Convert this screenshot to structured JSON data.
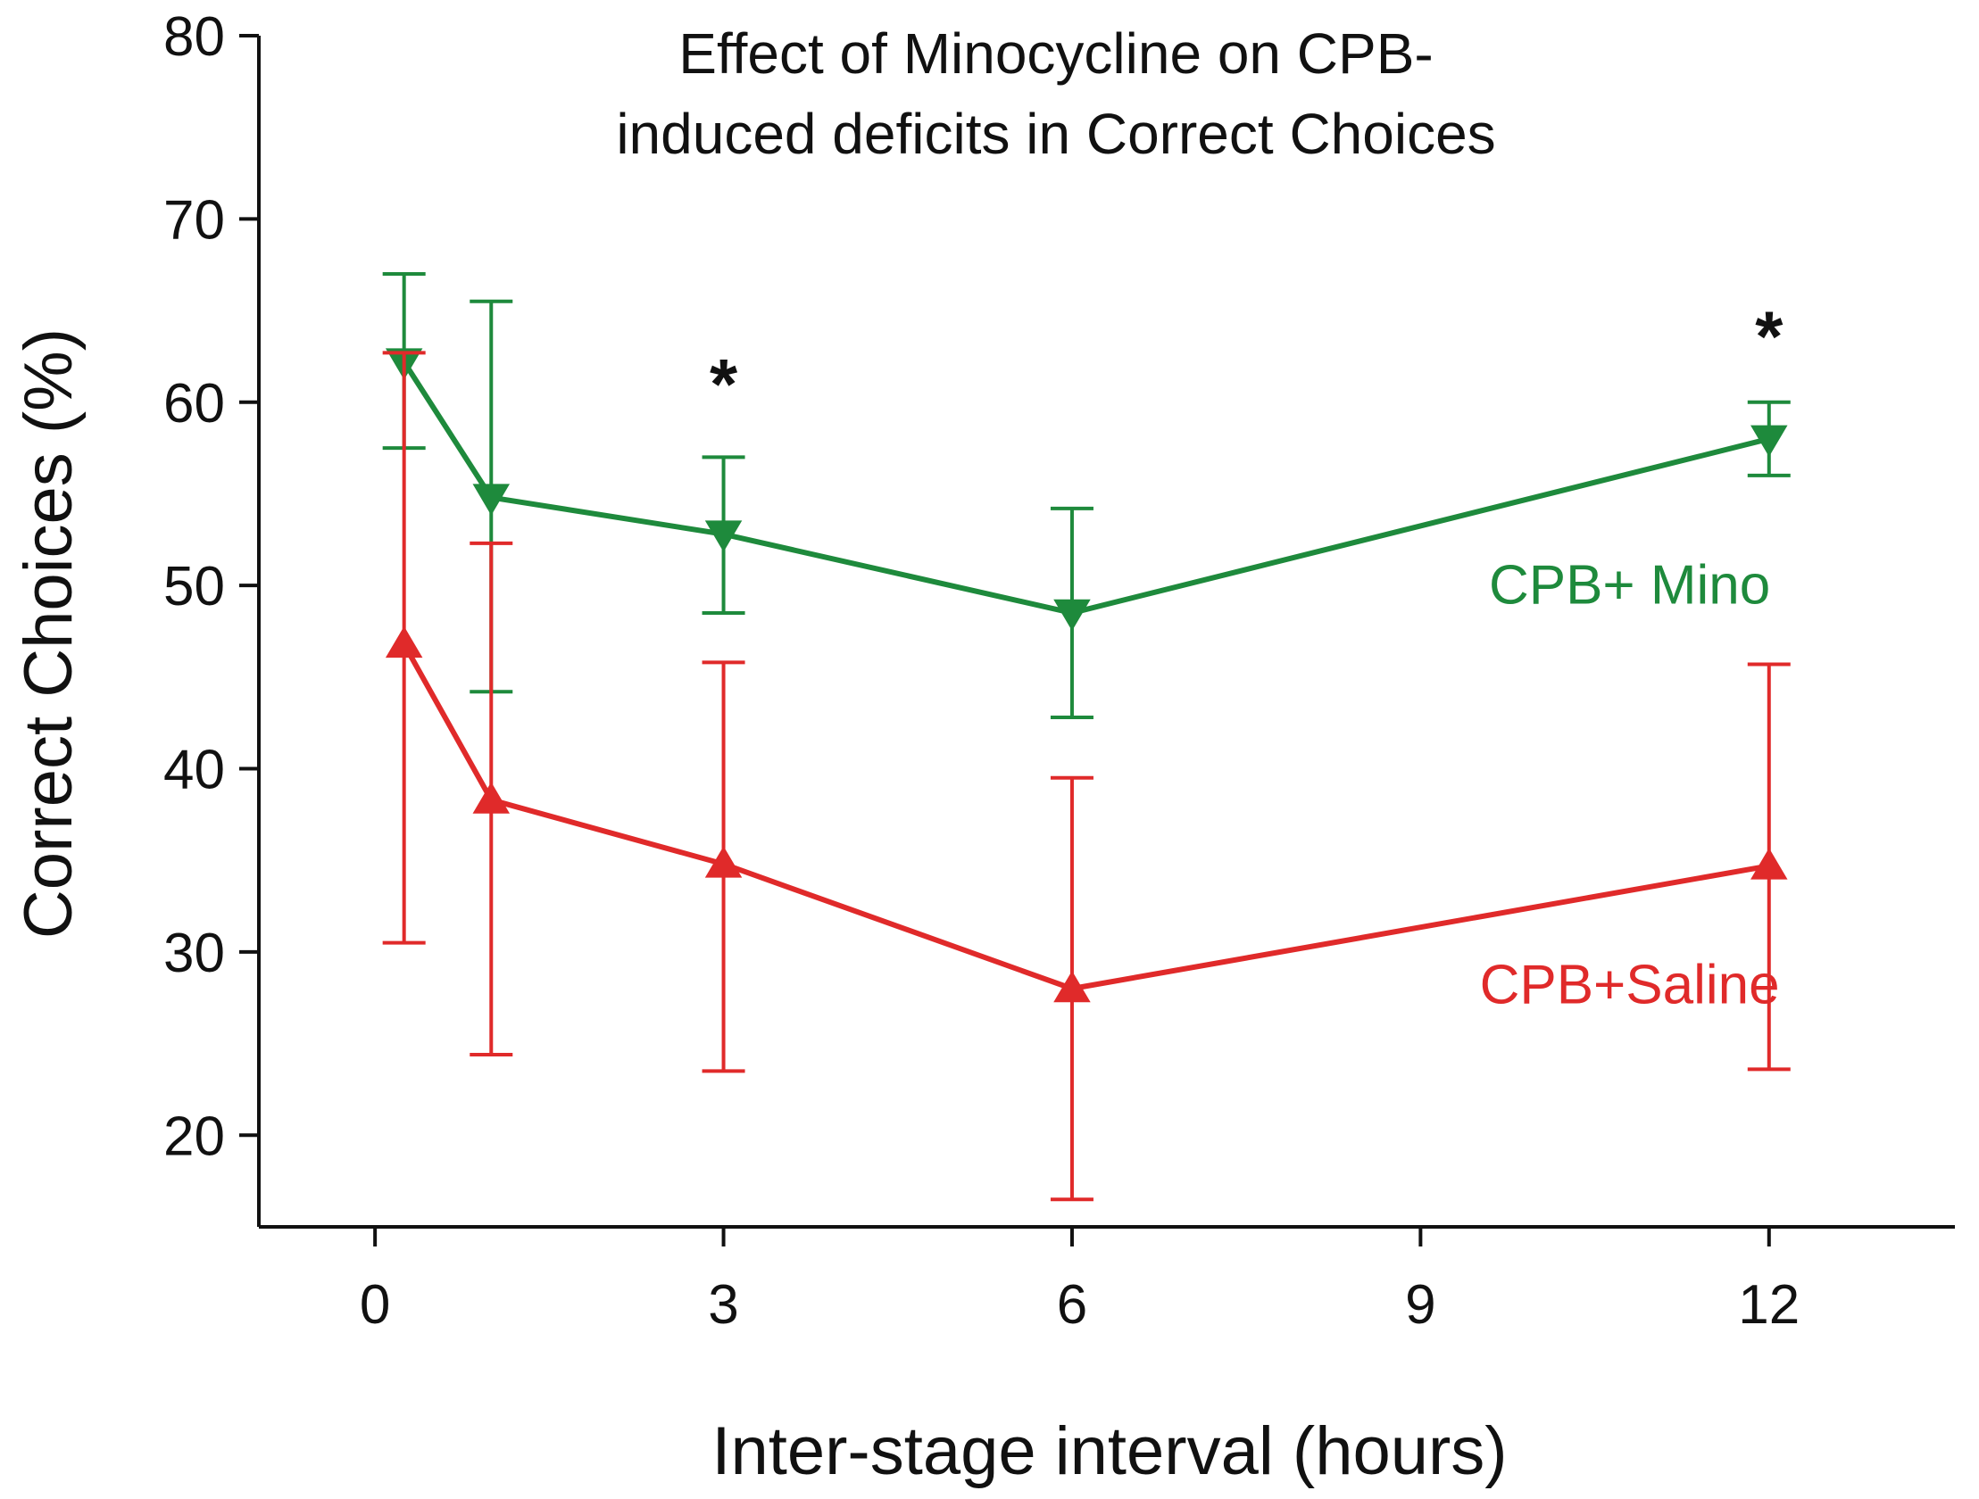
{
  "chart_data": {
    "type": "line",
    "title": "Effect of Minocycline on CPB-\ninduced deficits in Correct Choices",
    "title_lines": [
      "Effect of Minocycline on CPB-",
      "induced deficits in Correct Choices"
    ],
    "xlabel": "Inter-stage interval (hours)",
    "ylabel": "Correct Choices (%)",
    "xlim": [
      -1.0,
      13.6
    ],
    "ylim": [
      15,
      80
    ],
    "xticks": [
      0,
      3,
      6,
      9,
      12
    ],
    "yticks": [
      20,
      30,
      40,
      50,
      60,
      70,
      80
    ],
    "x": [
      0.25,
      1,
      3,
      6,
      12
    ],
    "series": [
      {
        "name": "CPB+ Mino",
        "color": "#1e8a3c",
        "marker": "triangle-down",
        "values": [
          62.2,
          54.8,
          52.8,
          48.5,
          58.0
        ],
        "err_upper": [
          67.0,
          65.5,
          57.0,
          54.2,
          60.0
        ],
        "err_lower": [
          57.5,
          44.2,
          48.5,
          42.8,
          56.0
        ]
      },
      {
        "name": "CPB+Saline",
        "color": "#e02a2a",
        "marker": "triangle-up",
        "values": [
          46.8,
          38.3,
          34.8,
          28.0,
          34.7
        ],
        "err_upper": [
          62.7,
          52.3,
          45.8,
          39.5,
          45.7
        ],
        "err_lower": [
          30.5,
          24.4,
          23.5,
          16.5,
          23.6
        ]
      }
    ],
    "annotations": [
      {
        "text": "*",
        "x": 3,
        "y": 61.6
      },
      {
        "text": "*",
        "x": 12,
        "y": 64.2
      }
    ],
    "series_labels": [
      {
        "text": "CPB+ Mino",
        "x": 10.8,
        "y": 49.0,
        "color": "#1e8a3c"
      },
      {
        "text": "CPB+Saline",
        "x": 10.8,
        "y": 27.2,
        "color": "#e02a2a"
      }
    ],
    "grid": false,
    "legend": "none"
  }
}
